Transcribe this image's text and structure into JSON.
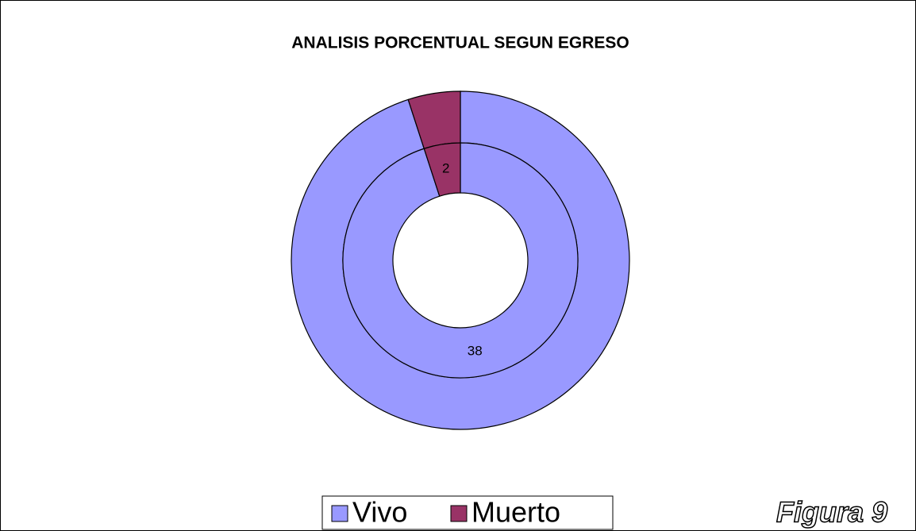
{
  "chart_data": {
    "type": "donut",
    "title": "ANALISIS PORCENTUAL SEGUN EGRESO",
    "categories": [
      "Vivo",
      "Muerto"
    ],
    "colors": [
      "#9999ff",
      "#993366"
    ],
    "series": [
      {
        "values": [
          38,
          2
        ],
        "show_labels": false
      },
      {
        "values": [
          38,
          2
        ],
        "show_labels": true
      }
    ],
    "legend": "bottom",
    "annotation": "Figura 9"
  }
}
